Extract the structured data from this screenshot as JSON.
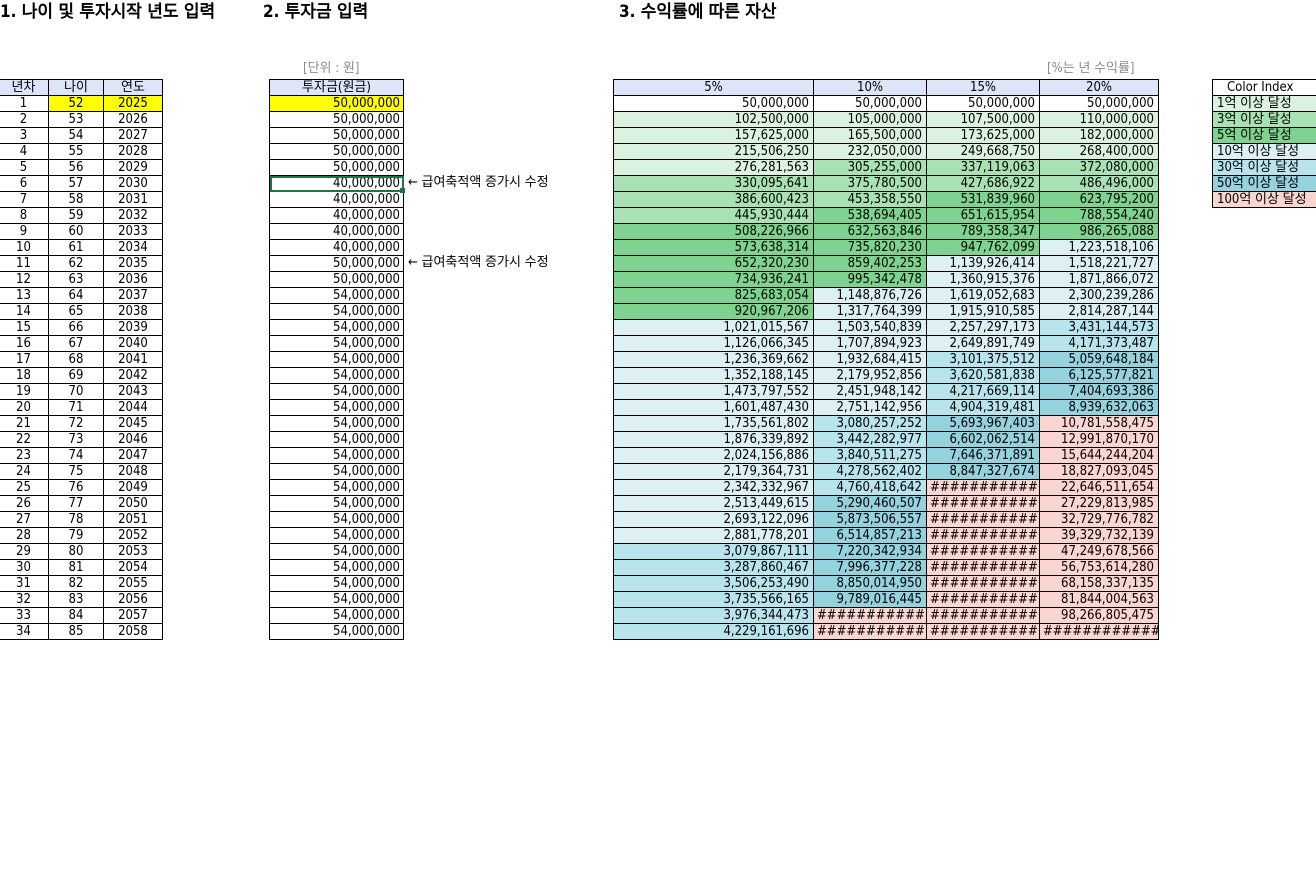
{
  "headings": {
    "h1": "1. 나이 및 투자시작 년도 입력",
    "h2": "2. 투자금 입력",
    "h3": "3. 수익률에 따른 자산"
  },
  "unit_label": "[단위 : 원]",
  "rate_note": "[%는 년 수익률]",
  "age_table": {
    "headers": [
      "년차",
      "나이",
      "연도"
    ],
    "rows": [
      [
        "1",
        "52",
        "2025"
      ],
      [
        "2",
        "53",
        "2026"
      ],
      [
        "3",
        "54",
        "2027"
      ],
      [
        "4",
        "55",
        "2028"
      ],
      [
        "5",
        "56",
        "2029"
      ],
      [
        "6",
        "57",
        "2030"
      ],
      [
        "7",
        "58",
        "2031"
      ],
      [
        "8",
        "59",
        "2032"
      ],
      [
        "9",
        "60",
        "2033"
      ],
      [
        "10",
        "61",
        "2034"
      ],
      [
        "11",
        "62",
        "2035"
      ],
      [
        "12",
        "63",
        "2036"
      ],
      [
        "13",
        "64",
        "2037"
      ],
      [
        "14",
        "65",
        "2038"
      ],
      [
        "15",
        "66",
        "2039"
      ],
      [
        "16",
        "67",
        "2040"
      ],
      [
        "17",
        "68",
        "2041"
      ],
      [
        "18",
        "69",
        "2042"
      ],
      [
        "19",
        "70",
        "2043"
      ],
      [
        "20",
        "71",
        "2044"
      ],
      [
        "21",
        "72",
        "2045"
      ],
      [
        "22",
        "73",
        "2046"
      ],
      [
        "23",
        "74",
        "2047"
      ],
      [
        "24",
        "75",
        "2048"
      ],
      [
        "25",
        "76",
        "2049"
      ],
      [
        "26",
        "77",
        "2050"
      ],
      [
        "27",
        "78",
        "2051"
      ],
      [
        "28",
        "79",
        "2052"
      ],
      [
        "29",
        "80",
        "2053"
      ],
      [
        "30",
        "81",
        "2054"
      ],
      [
        "31",
        "82",
        "2055"
      ],
      [
        "32",
        "83",
        "2056"
      ],
      [
        "33",
        "84",
        "2057"
      ],
      [
        "34",
        "85",
        "2058"
      ]
    ]
  },
  "invest_table": {
    "header": "투자금(원금)",
    "values": [
      "50,000,000",
      "50,000,000",
      "50,000,000",
      "50,000,000",
      "50,000,000",
      "40,000,000",
      "40,000,000",
      "40,000,000",
      "40,000,000",
      "40,000,000",
      "50,000,000",
      "50,000,000",
      "54,000,000",
      "54,000,000",
      "54,000,000",
      "54,000,000",
      "54,000,000",
      "54,000,000",
      "54,000,000",
      "54,000,000",
      "54,000,000",
      "54,000,000",
      "54,000,000",
      "54,000,000",
      "54,000,000",
      "54,000,000",
      "54,000,000",
      "54,000,000",
      "54,000,000",
      "54,000,000",
      "54,000,000",
      "54,000,000",
      "54,000,000",
      "54,000,000"
    ]
  },
  "notes": [
    {
      "row": 6,
      "text": "← 급여축적액 증가시 수정"
    },
    {
      "row": 11,
      "text": "← 급여축적액 증가시 수정"
    }
  ],
  "returns_table": {
    "headers": [
      "5%",
      "10%",
      "15%",
      "20%"
    ],
    "rows": [
      [
        "50,000,000",
        "50,000,000",
        "50,000,000",
        "50,000,000"
      ],
      [
        "102,500,000",
        "105,000,000",
        "107,500,000",
        "110,000,000"
      ],
      [
        "157,625,000",
        "165,500,000",
        "173,625,000",
        "182,000,000"
      ],
      [
        "215,506,250",
        "232,050,000",
        "249,668,750",
        "268,400,000"
      ],
      [
        "276,281,563",
        "305,255,000",
        "337,119,063",
        "372,080,000"
      ],
      [
        "330,095,641",
        "375,780,500",
        "427,686,922",
        "486,496,000"
      ],
      [
        "386,600,423",
        "453,358,550",
        "531,839,960",
        "623,795,200"
      ],
      [
        "445,930,444",
        "538,694,405",
        "651,615,954",
        "788,554,240"
      ],
      [
        "508,226,966",
        "632,563,846",
        "789,358,347",
        "986,265,088"
      ],
      [
        "573,638,314",
        "735,820,230",
        "947,762,099",
        "1,223,518,106"
      ],
      [
        "652,320,230",
        "859,402,253",
        "1,139,926,414",
        "1,518,221,727"
      ],
      [
        "734,936,241",
        "995,342,478",
        "1,360,915,376",
        "1,871,866,072"
      ],
      [
        "825,683,054",
        "1,148,876,726",
        "1,619,052,683",
        "2,300,239,286"
      ],
      [
        "920,967,206",
        "1,317,764,399",
        "1,915,910,585",
        "2,814,287,144"
      ],
      [
        "1,021,015,567",
        "1,503,540,839",
        "2,257,297,173",
        "3,431,144,573"
      ],
      [
        "1,126,066,345",
        "1,707,894,923",
        "2,649,891,749",
        "4,171,373,487"
      ],
      [
        "1,236,369,662",
        "1,932,684,415",
        "3,101,375,512",
        "5,059,648,184"
      ],
      [
        "1,352,188,145",
        "2,179,952,856",
        "3,620,581,838",
        "6,125,577,821"
      ],
      [
        "1,473,797,552",
        "2,451,948,142",
        "4,217,669,114",
        "7,404,693,386"
      ],
      [
        "1,601,487,430",
        "2,751,142,956",
        "4,904,319,481",
        "8,939,632,063"
      ],
      [
        "1,735,561,802",
        "3,080,257,252",
        "5,693,967,403",
        "10,781,558,475"
      ],
      [
        "1,876,339,892",
        "3,442,282,977",
        "6,602,062,514",
        "12,991,870,170"
      ],
      [
        "2,024,156,886",
        "3,840,511,275",
        "7,646,371,891",
        "15,644,244,204"
      ],
      [
        "2,179,364,731",
        "4,278,562,402",
        "8,847,327,674",
        "18,827,093,045"
      ],
      [
        "2,342,332,967",
        "4,760,418,642",
        "###########",
        "22,646,511,654"
      ],
      [
        "2,513,449,615",
        "5,290,460,507",
        "###########",
        "27,229,813,985"
      ],
      [
        "2,693,122,096",
        "5,873,506,557",
        "###########",
        "32,729,776,782"
      ],
      [
        "2,881,778,201",
        "6,514,857,213",
        "###########",
        "39,329,732,139"
      ],
      [
        "3,079,867,111",
        "7,220,342,934",
        "###########",
        "47,249,678,566"
      ],
      [
        "3,287,860,467",
        "7,996,377,228",
        "###########",
        "56,753,614,280"
      ],
      [
        "3,506,253,490",
        "8,850,014,950",
        "###########",
        "68,158,337,135"
      ],
      [
        "3,735,566,165",
        "9,789,016,445",
        "###########",
        "81,844,004,563"
      ],
      [
        "3,976,344,473",
        "###########",
        "###########",
        "98,266,805,475"
      ],
      [
        "4,229,161,696",
        "###########",
        "###########",
        "############"
      ]
    ]
  },
  "legend": {
    "title": "Color Index",
    "items": [
      {
        "label": "1억 이상 달성",
        "color": "#dbf3de"
      },
      {
        "label": "3억 이상 달성",
        "color": "#a8e2b2"
      },
      {
        "label": "5억 이상 달성",
        "color": "#7ed38e"
      },
      {
        "label": "10억 이상 달성",
        "color": "#dcf0f5"
      },
      {
        "label": "30억 이상 달성",
        "color": "#b8e4ed"
      },
      {
        "label": "50억 이상 달성",
        "color": "#94d2de"
      },
      {
        "label": "100억 이상 달성",
        "color": "#fbd5cf"
      }
    ]
  },
  "colors": {
    "header_fill": "#dce6f8",
    "input_highlight": "#ffff00",
    "selection": "#217346",
    "muted_text": "#8c8c8c"
  }
}
